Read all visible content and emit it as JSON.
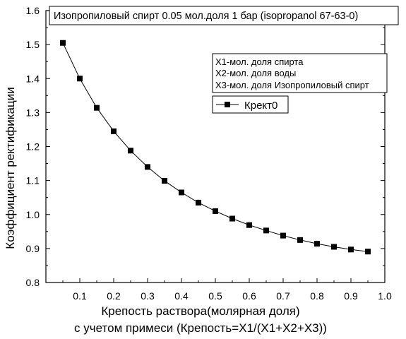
{
  "chart_data": {
    "type": "line",
    "title": "Изопропиловый спирт 0.05 мол.доля 1 бар (isopropanol 67-63-0)",
    "xlabel": [
      "Крепость раствора(молярная доля)",
      "с учетом примеси (Крепость=X1/(X1+X2+X3))"
    ],
    "ylabel": "Коэффициент ректификации",
    "xlim": [
      0.0,
      1.0
    ],
    "ylim": [
      0.8,
      1.6
    ],
    "xticks": [
      "0.1",
      "0.2",
      "0.3",
      "0.4",
      "0.5",
      "0.6",
      "0.7",
      "0.8",
      "0.9",
      "1.0"
    ],
    "yticks": [
      "0.8",
      "0.9",
      "1.0",
      "1.1",
      "1.2",
      "1.3",
      "1.4",
      "1.5",
      "1.6"
    ],
    "notes": [
      "X1-мол. доля спирта",
      "X2-мол. доля воды",
      "X3-мол. доля Изопропиловый спирт"
    ],
    "legend_position": "top-right",
    "grid": false,
    "series": [
      {
        "name": "Крект0",
        "color": "#000000",
        "marker": "square",
        "x": [
          0.05,
          0.1,
          0.15,
          0.2,
          0.25,
          0.3,
          0.35,
          0.4,
          0.45,
          0.5,
          0.55,
          0.6,
          0.65,
          0.7,
          0.75,
          0.8,
          0.85,
          0.9,
          0.95
        ],
        "y": [
          1.505,
          1.4,
          1.314,
          1.245,
          1.188,
          1.14,
          1.099,
          1.065,
          1.035,
          1.01,
          0.988,
          0.969,
          0.953,
          0.938,
          0.925,
          0.914,
          0.905,
          0.897,
          0.891
        ]
      }
    ]
  }
}
